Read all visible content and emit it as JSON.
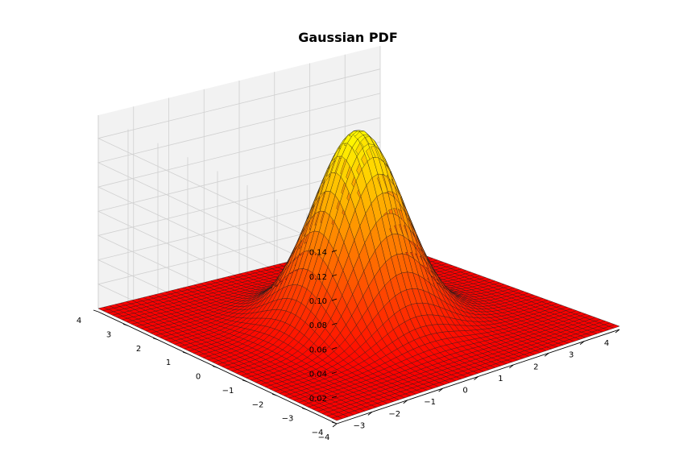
{
  "chart_data": {
    "type": "surface3d",
    "title": "Gaussian PDF",
    "function": "bivariate normal pdf, mean 0, unit variance",
    "x": {
      "range": [
        -4,
        4
      ],
      "ticks": [
        -4,
        -3,
        -2,
        -1,
        0,
        1,
        2,
        3,
        4
      ],
      "labels": [
        "−4",
        "−3",
        "−2",
        "−1",
        "0",
        "1",
        "2",
        "3",
        "4"
      ]
    },
    "y": {
      "range": [
        -4,
        4
      ],
      "ticks": [
        -4,
        -3,
        -2,
        -1,
        0,
        1,
        2,
        3,
        4
      ],
      "labels": [
        "−4",
        "−3",
        "−2",
        "−1",
        "0",
        "1",
        "2",
        "3",
        "4"
      ]
    },
    "z": {
      "range": [
        0,
        0.159
      ],
      "ticks": [
        0.02,
        0.04,
        0.06,
        0.08,
        0.1,
        0.12,
        0.14
      ],
      "labels": [
        "0.02",
        "0.04",
        "0.06",
        "0.08",
        "0.10",
        "0.12",
        "0.14"
      ]
    },
    "peak": 0.159,
    "grid": true,
    "colormap": "autumn",
    "colormap_low": "#ff0000",
    "colormap_high": "#ffff00",
    "edge_color": "#1a1a1a",
    "pane_colors": [
      "#f2f2f2",
      "#ebebeb",
      "#e6e6e6"
    ]
  }
}
